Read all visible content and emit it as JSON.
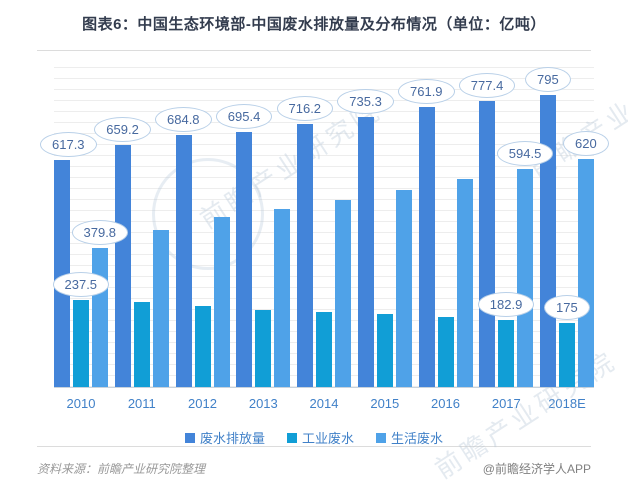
{
  "page": {
    "title": "图表6：中国生态环境部-中国废水排放量及分布情况（单位：亿吨）",
    "source_left": "资料来源：前瞻产业研究院整理",
    "source_right": "@前瞻经济学人APP"
  },
  "watermarks": {
    "text": "前瞻产业研究院"
  },
  "chart_data": {
    "type": "bar",
    "title": "图表6：中国生态环境部-中国废水排放量及分布情况（单位：亿吨）",
    "unit": "亿吨",
    "categories": [
      "2010",
      "2011",
      "2012",
      "2013",
      "2014",
      "2015",
      "2016",
      "2017",
      "2018E"
    ],
    "series": [
      {
        "name": "废水排放量",
        "color": "#4384d9",
        "values": [
          617.3,
          659.2,
          684.8,
          695.4,
          716.2,
          735.3,
          761.9,
          777.4,
          795
        ],
        "data_labels": [
          "617.3",
          "659.2",
          "684.8",
          "695.4",
          "716.2",
          "735.3",
          "761.9",
          "777.4",
          "795"
        ]
      },
      {
        "name": "工业废水",
        "color": "#119ed6",
        "values": [
          237.5,
          230.9,
          221.6,
          209.8,
          205.3,
          199.5,
          190,
          182.9,
          175
        ],
        "data_labels": [
          "237.5",
          null,
          null,
          null,
          null,
          null,
          null,
          "182.9",
          "175"
        ]
      },
      {
        "name": "生活废水",
        "color": "#4fa2e8",
        "values": [
          379.8,
          427.9,
          462.7,
          485.1,
          510.3,
          535.2,
          565,
          594.5,
          620
        ],
        "data_labels": [
          "379.8",
          null,
          null,
          null,
          null,
          null,
          null,
          "594.5",
          "620"
        ]
      }
    ],
    "ylim": [
      0,
      890
    ],
    "grid": "horizontal",
    "legend_position": "bottom",
    "xlabel": "",
    "ylabel": "",
    "styles": {
      "bubble_bg": "#ffffff",
      "bubble_border": "#b9d0e8",
      "bubble_text": "#47699f",
      "axis_label_color": "#4181c8",
      "title_color": "#333c4e"
    }
  }
}
